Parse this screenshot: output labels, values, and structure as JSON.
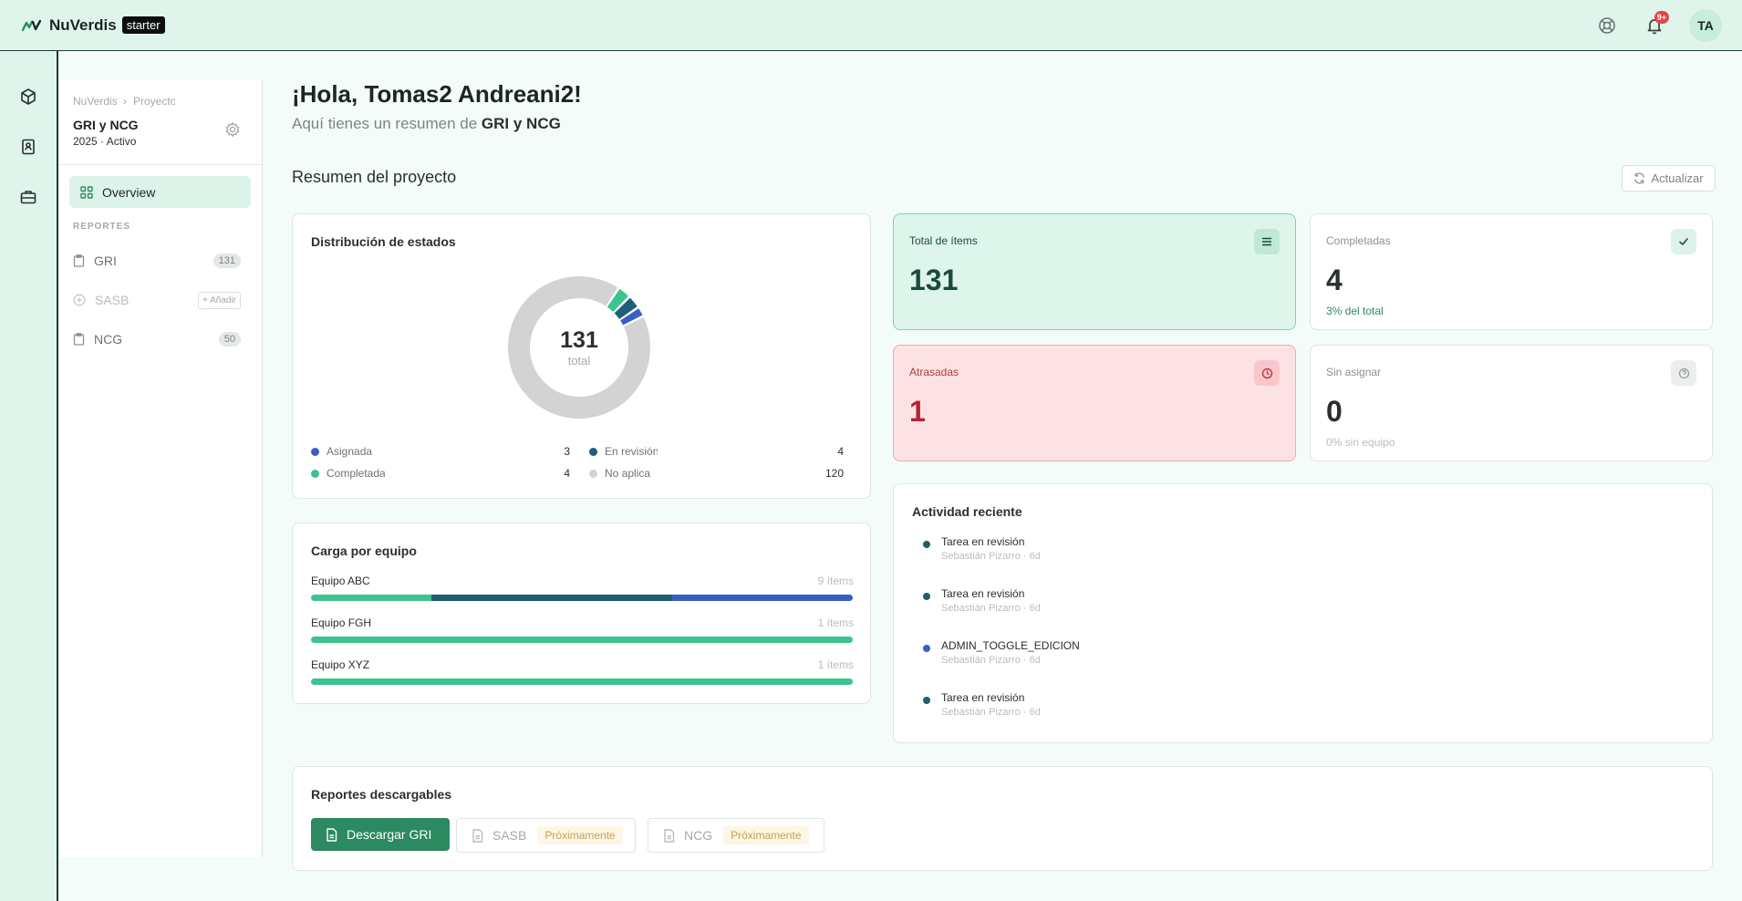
{
  "topbar": {
    "brand": "NuVerdis",
    "plan": "starter",
    "notifications_badge": "9+",
    "avatar_initials": "TA"
  },
  "rail": {
    "icons": [
      "cube-icon",
      "contact-book-icon",
      "briefcase-icon"
    ]
  },
  "project_panel": {
    "breadcrumb": [
      "NuVerdis",
      "Proyectos"
    ],
    "project_name": "GRI y NCG",
    "project_meta": "2025 · Activo",
    "nav_overview": "Overview",
    "section_label": "REPORTES",
    "reports": [
      {
        "label": "GRI",
        "count": "131",
        "disabled": false
      },
      {
        "label": "SASB",
        "action": "+ Añadir",
        "disabled": true
      },
      {
        "label": "NCG",
        "count": "50",
        "disabled": false
      }
    ]
  },
  "main": {
    "greeting": "¡Hola, Tomas2 Andreani2!",
    "subgreeting_prefix": "Aquí tienes un resumen de",
    "subgreeting_project": "GRI y NCG",
    "section_title": "Resumen del proyecto",
    "refresh_label": "Actualizar"
  },
  "distribution": {
    "title": "Distribución de estados",
    "total": "131",
    "total_label": "total",
    "legend": [
      {
        "name": "Asignada",
        "value": 3,
        "color": "#3a5fc0"
      },
      {
        "name": "En revisión",
        "value": 4,
        "color": "#1f5f7a"
      },
      {
        "name": "Completada",
        "value": 4,
        "color": "#3cc48f"
      },
      {
        "name": "No aplica",
        "value": 120,
        "color": "#d3d3d3"
      }
    ]
  },
  "team_load": {
    "title": "Carga por equipo",
    "teams": [
      {
        "name": "Equipo ABC",
        "count": "9 ítems",
        "segments": [
          {
            "value": 2,
            "color": "#3cc48f"
          },
          {
            "value": 4,
            "color": "#1f5f6e"
          },
          {
            "value": 3,
            "color": "#3a5fc0"
          }
        ]
      },
      {
        "name": "Equipo FGH",
        "count": "1 ítems",
        "segments": [
          {
            "value": 1,
            "color": "#3cc48f"
          }
        ]
      },
      {
        "name": "Equipo XYZ",
        "count": "1 ítems",
        "segments": [
          {
            "value": 1,
            "color": "#3cc48f"
          }
        ]
      }
    ]
  },
  "stats": {
    "total": {
      "label": "Total de ítems",
      "value": "131"
    },
    "completed": {
      "label": "Completadas",
      "value": "4",
      "foot": "3% del total"
    },
    "overdue": {
      "label": "Atrasadas",
      "value": "1"
    },
    "unassigned": {
      "label": "Sin asignar",
      "value": "0",
      "foot": "0% sin equipo"
    }
  },
  "activity": {
    "title": "Actividad reciente",
    "items": [
      {
        "title": "Tarea en revisión",
        "meta": "Sebastián Pizarro · 6d",
        "color": "#1f5f6e"
      },
      {
        "title": "Tarea en revisión",
        "meta": "Sebastián Pizarro · 6d",
        "color": "#1f5f6e"
      },
      {
        "title": "ADMIN_TOGGLE_EDICION",
        "meta": "Sebastián Pizarro · 6d",
        "color": "#3a5fc0"
      },
      {
        "title": "Tarea en revisión",
        "meta": "Sebastián Pizarro · 6d",
        "color": "#1f5f6e"
      }
    ]
  },
  "downloads": {
    "title": "Reportes descargables",
    "primary": "Descargar GRI",
    "disabled": [
      {
        "name": "SASB",
        "badge": "Próximamente"
      },
      {
        "name": "NCG",
        "badge": "Próximamente"
      }
    ]
  }
}
